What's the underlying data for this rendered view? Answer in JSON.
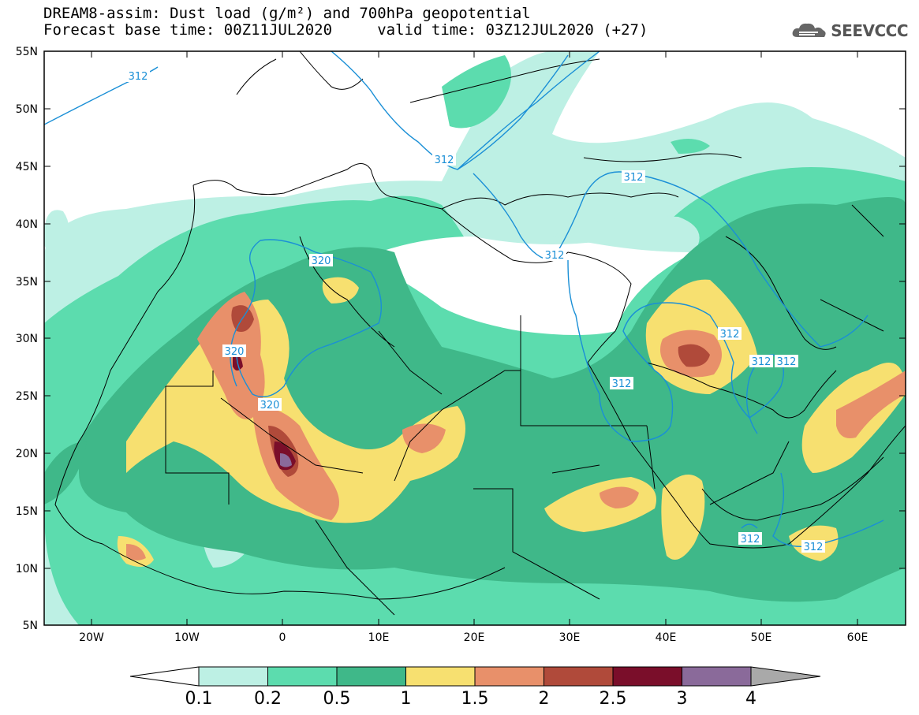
{
  "title": {
    "line1": "DREAM8-assim: Dust load (g/m²) and 700hPa geopotential",
    "line2": "Forecast base time: 00Z11JUL2020     valid time: 03Z12JUL2020 (+27)"
  },
  "logo": {
    "text": "SEEVCCC",
    "icon": "cloud-icon"
  },
  "axes": {
    "lat_labels": [
      "55N",
      "50N",
      "45N",
      "40N",
      "35N",
      "30N",
      "25N",
      "20N",
      "15N",
      "10N",
      "5N"
    ],
    "lon_labels": [
      "20W",
      "10W",
      "0",
      "10E",
      "20E",
      "30E",
      "40E",
      "50E",
      "60E"
    ]
  },
  "contour_labels": [
    {
      "text": "312"
    },
    {
      "text": "312"
    },
    {
      "text": "312"
    },
    {
      "text": "312"
    },
    {
      "text": "320"
    },
    {
      "text": "320"
    },
    {
      "text": "320"
    },
    {
      "text": "312"
    },
    {
      "text": "312"
    },
    {
      "text": "312"
    },
    {
      "text": "312"
    },
    {
      "text": "312"
    },
    {
      "text": "312"
    }
  ],
  "colorbar": {
    "levels": [
      "0.1",
      "0.2",
      "0.5",
      "1",
      "1.5",
      "2",
      "2.5",
      "3",
      "4"
    ],
    "colors": [
      "#ffffff",
      "#bdf0e4",
      "#5cdcae",
      "#3fb889",
      "#f7e070",
      "#e8906a",
      "#b04a3a",
      "#7a0e2a",
      "#8a6a9a",
      "#a9a9a9"
    ]
  }
}
